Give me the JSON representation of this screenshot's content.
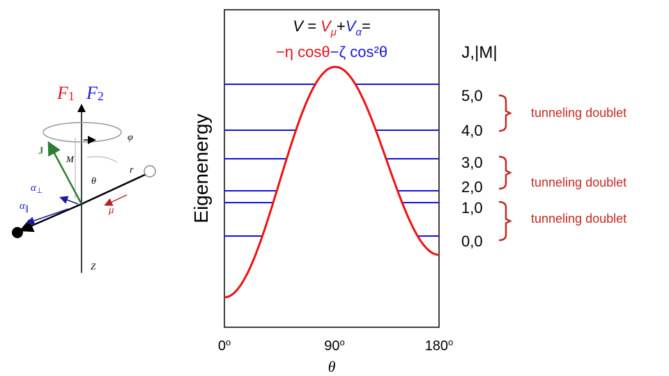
{
  "left_diagram": {
    "f1": {
      "letter": "F",
      "index": "1"
    },
    "f2": {
      "letter": "F",
      "index": "2"
    },
    "phi": "φ",
    "j": "J",
    "m": "M",
    "theta": "θ",
    "r": "r",
    "alpha_perp": {
      "letter": "α",
      "index": "⊥"
    },
    "alpha_par": {
      "letter": "α",
      "index": "∥"
    },
    "mu": "μ",
    "z": "Z"
  },
  "plot": {
    "formula": {
      "line1": [
        "V = ",
        "V",
        "μ",
        "+",
        "V",
        "α",
        "="
      ],
      "line2": [
        "−η cosθ",
        "−ζ cos²θ"
      ]
    },
    "y_label": "Eigenenergy",
    "x_label": "θ",
    "x_ticks": [
      {
        "number": "0",
        "unit": "o"
      },
      {
        "number": "90",
        "unit": "o"
      },
      {
        "number": "180",
        "unit": "o"
      }
    ],
    "level_header": "J,|M|",
    "levels": [
      "5,0",
      "4,0",
      "3,0",
      "2,0",
      "1,0",
      "0,0"
    ],
    "doublets": [
      "tunneling doublet",
      "tunneling doublet",
      "tunneling doublet"
    ]
  }
}
